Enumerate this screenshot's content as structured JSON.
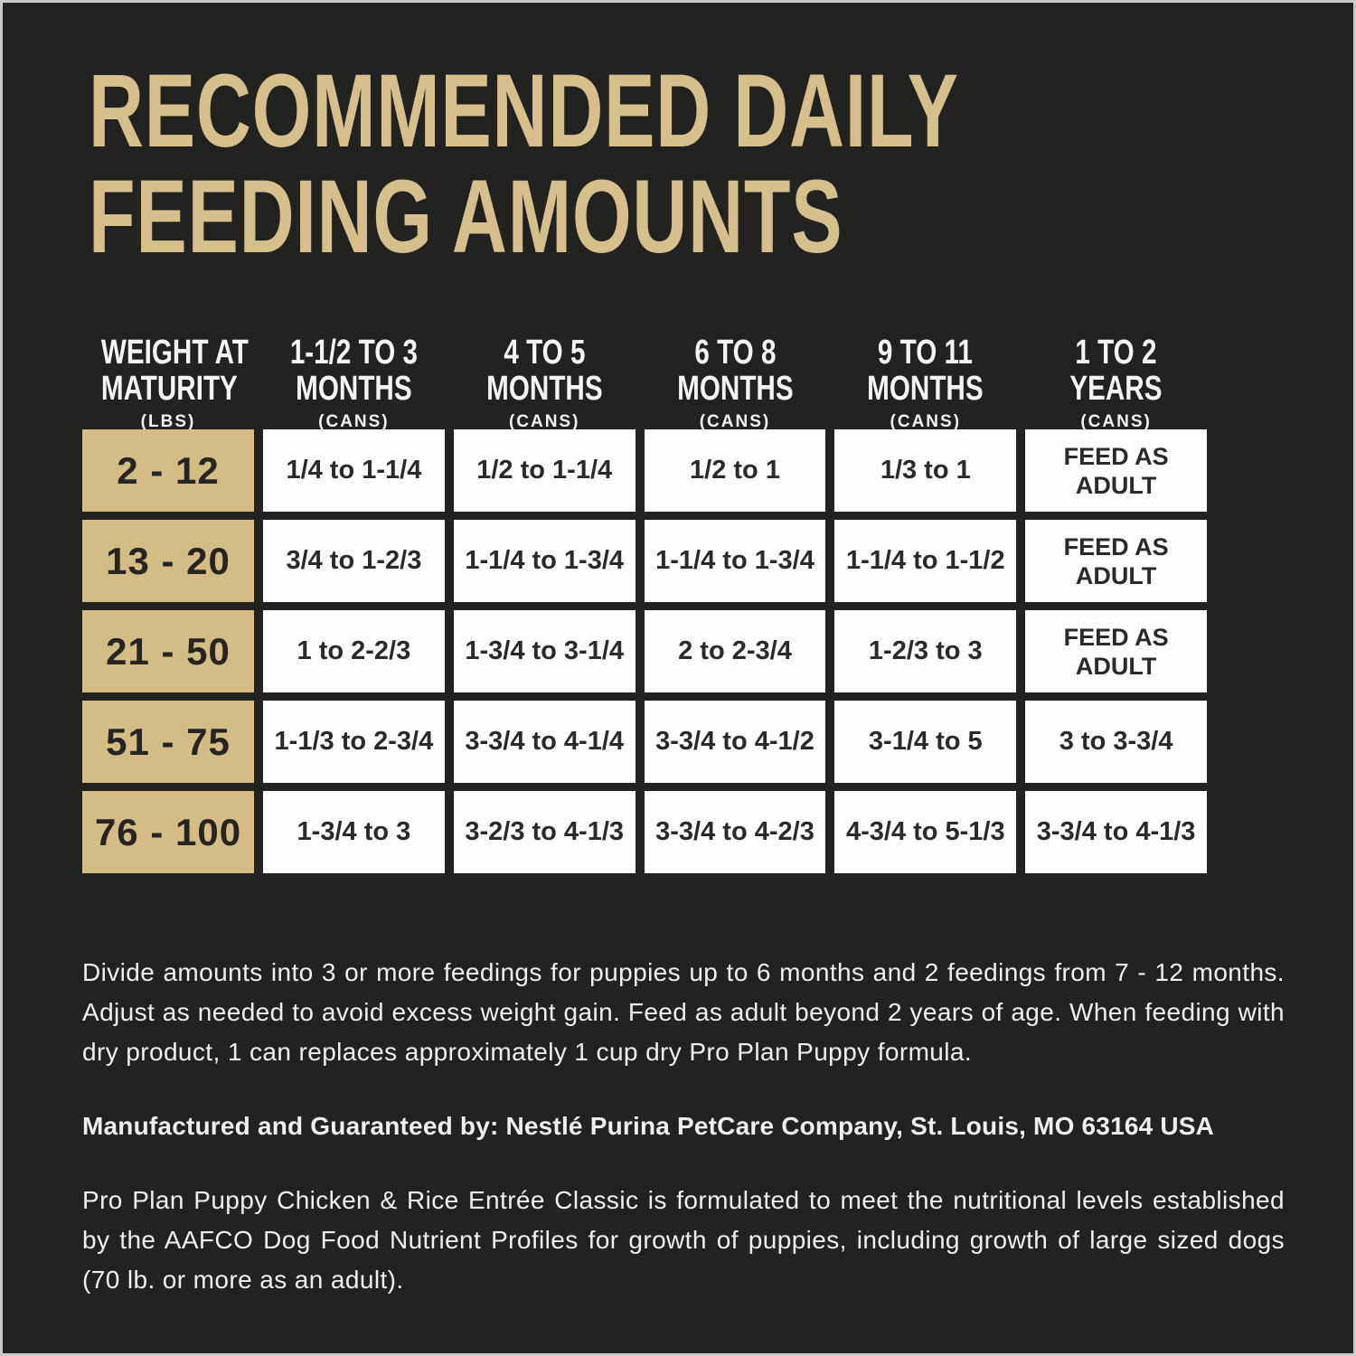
{
  "colors": {
    "background": "#222321",
    "frame_edge": "#c9c9c9",
    "title_gold": "#d5bf8c",
    "weight_cell_tan": "#d4bc86",
    "value_cell_white": "#fdfdfd",
    "cell_text_dark": "#2b2a26",
    "header_text_white": "#f5f4f2"
  },
  "title": {
    "line1": "RECOMMENDED DAILY",
    "line2": "FEEDING AMOUNTS"
  },
  "table": {
    "headers": [
      {
        "line1": "WEIGHT AT",
        "line2": "MATURITY",
        "unit": "(LBS)"
      },
      {
        "line1": "1-1/2 TO 3",
        "line2": "MONTHS",
        "unit": "(CANS)"
      },
      {
        "line1": "4 TO 5",
        "line2": "MONTHS",
        "unit": "(CANS)"
      },
      {
        "line1": "6 TO 8",
        "line2": "MONTHS",
        "unit": "(CANS)"
      },
      {
        "line1": "9 TO 11",
        "line2": "MONTHS",
        "unit": "(CANS)"
      },
      {
        "line1": "1 TO 2",
        "line2": "YEARS",
        "unit": "(CANS)"
      }
    ],
    "rows": [
      {
        "weight": "2 - 12",
        "values": [
          "1/4 to 1-1/4",
          "1/2 to 1-1/4",
          "1/2 to 1",
          "1/3 to 1",
          "FEED AS ADULT"
        ]
      },
      {
        "weight": "13 - 20",
        "values": [
          "3/4 to 1-2/3",
          "1-1/4 to 1-3/4",
          "1-1/4 to 1-3/4",
          "1-1/4 to 1-1/2",
          "FEED AS ADULT"
        ]
      },
      {
        "weight": "21 - 50",
        "values": [
          "1 to 2-2/3",
          "1-3/4 to 3-1/4",
          "2 to 2-3/4",
          "1-2/3 to 3",
          "FEED AS ADULT"
        ]
      },
      {
        "weight": "51 - 75",
        "values": [
          "1-1/3 to 2-3/4",
          "3-3/4 to 4-1/4",
          "3-3/4 to 4-1/2",
          "3-1/4 to 5",
          "3 to 3-3/4"
        ]
      },
      {
        "weight": "76 - 100",
        "values": [
          "1-3/4 to 3",
          "3-2/3 to 4-1/3",
          "3-3/4 to 4-2/3",
          "4-3/4 to 5-1/3",
          "3-3/4 to 4-1/3"
        ]
      }
    ]
  },
  "notes": {
    "feeding_instructions": "Divide amounts into 3 or more feedings for puppies up to 6 months and 2 feedings from 7 - 12 months. Adjust as needed to avoid excess weight gain. Feed as adult beyond 2 years of age. When feeding with dry product, 1 can replaces approximately 1 cup dry Pro Plan Puppy formula.",
    "manufacturer": "Manufactured and Guaranteed by: Nestlé Purina PetCare Company, St. Louis, MO 63164 USA",
    "aafco_statement": "Pro Plan Puppy Chicken & Rice Entrée Classic is formulated to meet the nutritional levels established by the AAFCO Dog Food Nutrient Profiles for growth of puppies, including growth of large sized dogs (70 lb. or more as an adult)."
  }
}
